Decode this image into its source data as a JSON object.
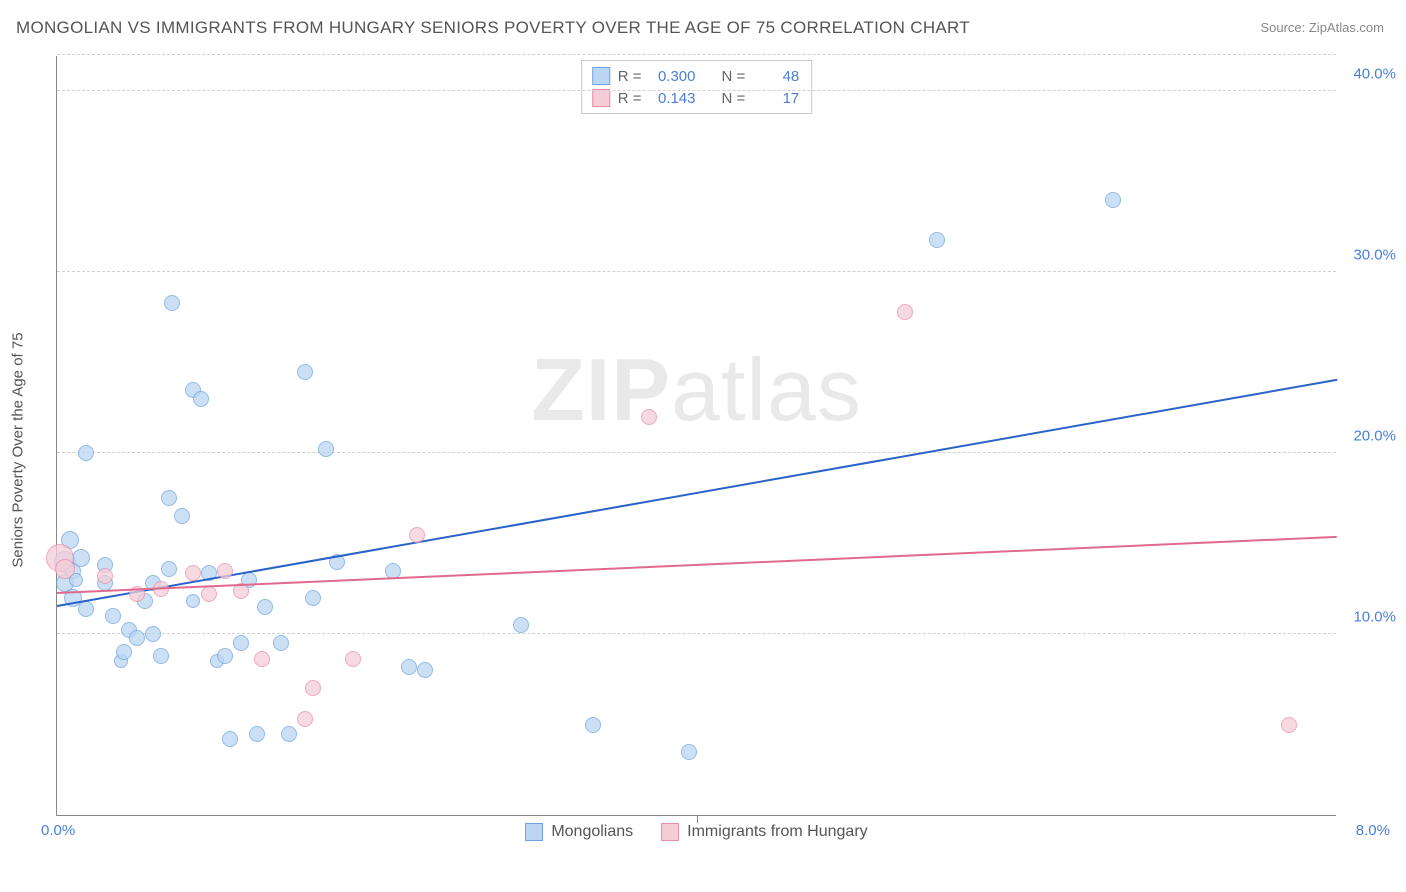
{
  "title": "MONGOLIAN VS IMMIGRANTS FROM HUNGARY SENIORS POVERTY OVER THE AGE OF 75 CORRELATION CHART",
  "source_label": "Source: ",
  "source_name": "ZipAtlas.com",
  "y_axis_label": "Seniors Poverty Over the Age of 75",
  "watermark": "ZIPatlas",
  "chart": {
    "type": "scatter",
    "xlim": [
      0.0,
      8.0
    ],
    "ylim": [
      0.0,
      42.0
    ],
    "x_tick_min": "0.0%",
    "x_tick_max": "8.0%",
    "y_ticks": [
      {
        "v": 10.0,
        "label": "10.0%"
      },
      {
        "v": 20.0,
        "label": "20.0%"
      },
      {
        "v": 30.0,
        "label": "30.0%"
      },
      {
        "v": 40.0,
        "label": "40.0%"
      }
    ],
    "x_axis_minor_tick": 4.0,
    "background_color": "#ffffff",
    "grid_color": "#d0d0d0",
    "axis_color": "#888888",
    "tick_label_color": "#4a7fd8",
    "series": [
      {
        "name": "Mongolians",
        "fill": "#bcd6f2",
        "stroke": "#6fa4e0",
        "opacity": 0.75,
        "marker_radius": 8,
        "R": "0.300",
        "N": "48",
        "trend": {
          "color": "#2a63c8",
          "y_at_xmin": 11.5,
          "y_at_xmax": 24.0,
          "width": 2
        },
        "points": [
          {
            "x": 0.05,
            "y": 14.0,
            "r": 11
          },
          {
            "x": 0.05,
            "y": 12.8,
            "r": 9
          },
          {
            "x": 0.08,
            "y": 15.2,
            "r": 9
          },
          {
            "x": 0.1,
            "y": 13.5,
            "r": 8
          },
          {
            "x": 0.1,
            "y": 12.0,
            "r": 9
          },
          {
            "x": 0.12,
            "y": 13.0,
            "r": 7
          },
          {
            "x": 0.15,
            "y": 14.2,
            "r": 9
          },
          {
            "x": 0.18,
            "y": 11.4,
            "r": 8
          },
          {
            "x": 0.18,
            "y": 20.0,
            "r": 8
          },
          {
            "x": 0.3,
            "y": 13.8,
            "r": 8
          },
          {
            "x": 0.3,
            "y": 12.8,
            "r": 8
          },
          {
            "x": 0.35,
            "y": 11.0,
            "r": 8
          },
          {
            "x": 0.4,
            "y": 8.5,
            "r": 7
          },
          {
            "x": 0.42,
            "y": 9.0,
            "r": 8
          },
          {
            "x": 0.45,
            "y": 10.2,
            "r": 8
          },
          {
            "x": 0.5,
            "y": 9.8,
            "r": 8
          },
          {
            "x": 0.55,
            "y": 11.8,
            "r": 8
          },
          {
            "x": 0.6,
            "y": 10.0,
            "r": 8
          },
          {
            "x": 0.6,
            "y": 12.8,
            "r": 8
          },
          {
            "x": 0.65,
            "y": 8.8,
            "r": 8
          },
          {
            "x": 0.7,
            "y": 17.5,
            "r": 8
          },
          {
            "x": 0.7,
            "y": 13.6,
            "r": 8
          },
          {
            "x": 0.72,
            "y": 28.3,
            "r": 8
          },
          {
            "x": 0.78,
            "y": 16.5,
            "r": 8
          },
          {
            "x": 0.85,
            "y": 11.8,
            "r": 7
          },
          {
            "x": 0.85,
            "y": 23.5,
            "r": 8
          },
          {
            "x": 0.9,
            "y": 23.0,
            "r": 8
          },
          {
            "x": 0.95,
            "y": 13.4,
            "r": 8
          },
          {
            "x": 1.0,
            "y": 8.5,
            "r": 7
          },
          {
            "x": 1.05,
            "y": 8.8,
            "r": 8
          },
          {
            "x": 1.08,
            "y": 4.2,
            "r": 8
          },
          {
            "x": 1.15,
            "y": 9.5,
            "r": 8
          },
          {
            "x": 1.2,
            "y": 13.0,
            "r": 8
          },
          {
            "x": 1.25,
            "y": 4.5,
            "r": 8
          },
          {
            "x": 1.3,
            "y": 11.5,
            "r": 8
          },
          {
            "x": 1.4,
            "y": 9.5,
            "r": 8
          },
          {
            "x": 1.45,
            "y": 4.5,
            "r": 8
          },
          {
            "x": 1.55,
            "y": 24.5,
            "r": 8
          },
          {
            "x": 1.6,
            "y": 12.0,
            "r": 8
          },
          {
            "x": 1.68,
            "y": 20.2,
            "r": 8
          },
          {
            "x": 1.75,
            "y": 14.0,
            "r": 8
          },
          {
            "x": 2.1,
            "y": 13.5,
            "r": 8
          },
          {
            "x": 2.2,
            "y": 8.2,
            "r": 8
          },
          {
            "x": 2.3,
            "y": 8.0,
            "r": 8
          },
          {
            "x": 2.9,
            "y": 10.5,
            "r": 8
          },
          {
            "x": 3.35,
            "y": 5.0,
            "r": 8
          },
          {
            "x": 3.95,
            "y": 3.5,
            "r": 8
          },
          {
            "x": 5.5,
            "y": 31.8,
            "r": 8
          },
          {
            "x": 6.6,
            "y": 34.0,
            "r": 8
          }
        ]
      },
      {
        "name": "Immigrants from Hungary",
        "fill": "#f4cdd7",
        "stroke": "#e78fa8",
        "opacity": 0.75,
        "marker_radius": 8,
        "R": "0.143",
        "N": "17",
        "trend": {
          "color": "#e06a8d",
          "y_at_xmin": 12.2,
          "y_at_xmax": 15.3,
          "width": 2
        },
        "points": [
          {
            "x": 0.02,
            "y": 14.2,
            "r": 14
          },
          {
            "x": 0.05,
            "y": 13.6,
            "r": 10
          },
          {
            "x": 0.3,
            "y": 13.2,
            "r": 8
          },
          {
            "x": 0.5,
            "y": 12.2,
            "r": 8
          },
          {
            "x": 0.65,
            "y": 12.5,
            "r": 8
          },
          {
            "x": 0.85,
            "y": 13.4,
            "r": 8
          },
          {
            "x": 0.95,
            "y": 12.2,
            "r": 8
          },
          {
            "x": 1.05,
            "y": 13.5,
            "r": 8
          },
          {
            "x": 1.15,
            "y": 12.4,
            "r": 8
          },
          {
            "x": 1.28,
            "y": 8.6,
            "r": 8
          },
          {
            "x": 1.55,
            "y": 5.3,
            "r": 8
          },
          {
            "x": 1.6,
            "y": 7.0,
            "r": 8
          },
          {
            "x": 1.85,
            "y": 8.6,
            "r": 8
          },
          {
            "x": 2.25,
            "y": 15.5,
            "r": 8
          },
          {
            "x": 3.7,
            "y": 22.0,
            "r": 8
          },
          {
            "x": 5.3,
            "y": 27.8,
            "r": 8
          },
          {
            "x": 7.7,
            "y": 5.0,
            "r": 8
          }
        ]
      }
    ]
  },
  "stats_legend": {
    "R_label": "R =",
    "N_label": "N ="
  },
  "bottom_legend_labels": [
    "Mongolians",
    "Immigrants from Hungary"
  ]
}
